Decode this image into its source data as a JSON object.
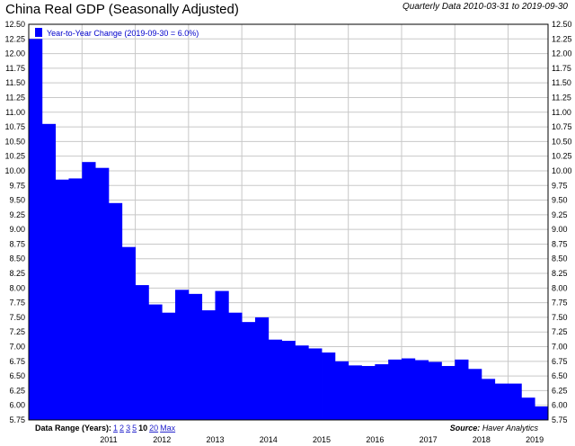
{
  "header": {
    "title": "China Real GDP (Seasonally Adjusted)",
    "subtitle": "Quarterly Data 2010-03-31 to 2019-09-30"
  },
  "footer": {
    "range_label": "Data Range (Years):",
    "range_options": [
      "1",
      "2",
      "3",
      "5",
      "10",
      "20",
      "Max"
    ],
    "selected_range": "10",
    "source_label": "Source:",
    "source_name": "Haver Analytics"
  },
  "colors": {
    "bar": "#0000ff",
    "grid": "#c8c8c8",
    "link": "#2222cc"
  },
  "chart_data": {
    "type": "bar",
    "legend": "Year-to-Year Change (2019-09-30 = 6.0%)",
    "legend_position": "top-left",
    "grid": true,
    "ylim": [
      5.75,
      12.5
    ],
    "y_ticks": [
      "5.75",
      "6.00",
      "6.25",
      "6.50",
      "6.75",
      "7.00",
      "7.25",
      "7.50",
      "7.75",
      "8.00",
      "8.25",
      "8.50",
      "8.75",
      "9.00",
      "9.25",
      "9.50",
      "9.75",
      "10.00",
      "10.25",
      "10.50",
      "10.75",
      "11.00",
      "11.25",
      "11.50",
      "11.75",
      "12.00",
      "12.25",
      "12.50"
    ],
    "x_labels": [
      "2011",
      "2012",
      "2013",
      "2014",
      "2015",
      "2016",
      "2017",
      "2018",
      "2019"
    ],
    "categories": [
      "2010-Q1",
      "2010-Q2",
      "2010-Q3",
      "2010-Q4",
      "2011-Q1",
      "2011-Q2",
      "2011-Q3",
      "2011-Q4",
      "2012-Q1",
      "2012-Q2",
      "2012-Q3",
      "2012-Q4",
      "2013-Q1",
      "2013-Q2",
      "2013-Q3",
      "2013-Q4",
      "2014-Q1",
      "2014-Q2",
      "2014-Q3",
      "2014-Q4",
      "2015-Q1",
      "2015-Q2",
      "2015-Q3",
      "2015-Q4",
      "2016-Q1",
      "2016-Q2",
      "2016-Q3",
      "2016-Q4",
      "2017-Q1",
      "2017-Q2",
      "2017-Q3",
      "2017-Q4",
      "2018-Q1",
      "2018-Q2",
      "2018-Q3",
      "2018-Q4",
      "2019-Q1",
      "2019-Q2",
      "2019-Q3"
    ],
    "values": [
      12.25,
      10.8,
      9.85,
      9.87,
      10.15,
      10.05,
      9.45,
      8.7,
      8.05,
      7.72,
      7.58,
      7.97,
      7.9,
      7.62,
      7.95,
      7.58,
      7.42,
      7.5,
      7.12,
      7.1,
      7.02,
      6.97,
      6.9,
      6.75,
      6.68,
      6.67,
      6.7,
      6.78,
      6.8,
      6.77,
      6.74,
      6.67,
      6.78,
      6.62,
      6.45,
      6.37,
      6.37,
      6.13,
      5.98
    ]
  }
}
